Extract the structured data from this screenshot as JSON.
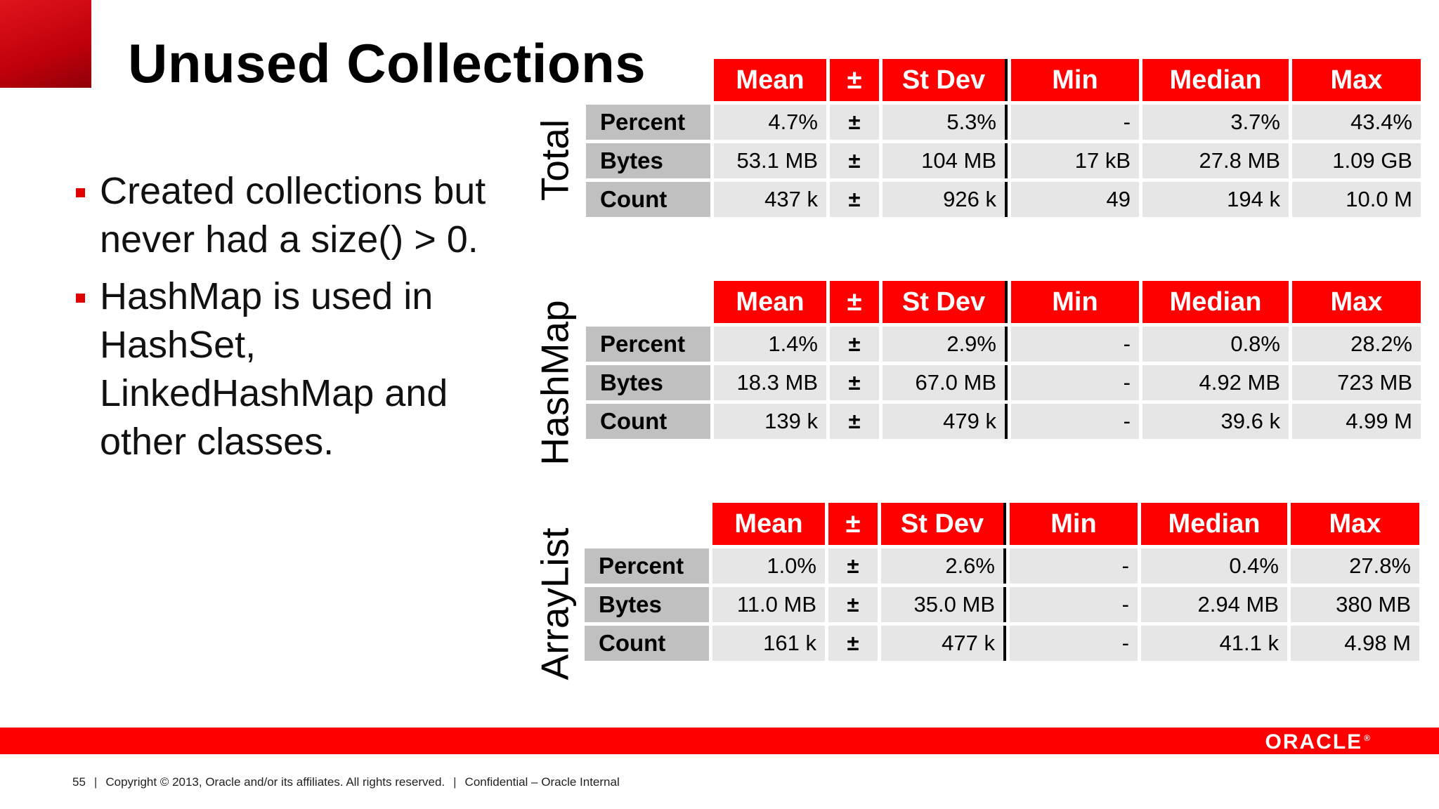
{
  "title": "Unused Collections",
  "bullets": [
    "Created collections but never had a size() > 0.",
    "HashMap is used in HashSet, LinkedHashMap and other classes."
  ],
  "columns": [
    "Mean",
    "±",
    "St Dev",
    "Min",
    "Median",
    "Max"
  ],
  "tables": [
    {
      "label": "Total",
      "rows": [
        {
          "label": "Percent",
          "mean": "4.7%",
          "pm": "±",
          "stdev": "5.3%",
          "min": "-",
          "median": "3.7%",
          "max": "43.4%"
        },
        {
          "label": "Bytes",
          "mean": "53.1 MB",
          "pm": "±",
          "stdev": "104 MB",
          "min": "17 kB",
          "median": "27.8 MB",
          "max": "1.09 GB"
        },
        {
          "label": "Count",
          "mean": "437 k",
          "pm": "±",
          "stdev": "926 k",
          "min": "49",
          "median": "194 k",
          "max": "10.0 M"
        }
      ]
    },
    {
      "label": "HashMap",
      "rows": [
        {
          "label": "Percent",
          "mean": "1.4%",
          "pm": "±",
          "stdev": "2.9%",
          "min": "-",
          "median": "0.8%",
          "max": "28.2%"
        },
        {
          "label": "Bytes",
          "mean": "18.3 MB",
          "pm": "±",
          "stdev": "67.0 MB",
          "min": "-",
          "median": "4.92 MB",
          "max": "723 MB"
        },
        {
          "label": "Count",
          "mean": "139 k",
          "pm": "±",
          "stdev": "479 k",
          "min": "-",
          "median": "39.6 k",
          "max": "4.99 M"
        }
      ]
    },
    {
      "label": "ArrayList",
      "rows": [
        {
          "label": "Percent",
          "mean": "1.0%",
          "pm": "±",
          "stdev": "2.6%",
          "min": "-",
          "median": "0.4%",
          "max": "27.8%"
        },
        {
          "label": "Bytes",
          "mean": "11.0 MB",
          "pm": "±",
          "stdev": "35.0 MB",
          "min": "-",
          "median": "2.94 MB",
          "max": "380 MB"
        },
        {
          "label": "Count",
          "mean": "161 k",
          "pm": "±",
          "stdev": "477 k",
          "min": "-",
          "median": "41.1 k",
          "max": "4.98 M"
        }
      ]
    }
  ],
  "footer": {
    "page": "55",
    "copyright": "Copyright © 2013, Oracle and/or its affiliates. All rights reserved.",
    "confidential": "Confidential – Oracle Internal",
    "logo": "ORACLE",
    "logo_mark": "®"
  },
  "colors": {
    "accent": "#ff0000",
    "header_text": "#ffffff",
    "cell_bg": "#e6e6e6",
    "label_bg": "#c0c0c0"
  }
}
